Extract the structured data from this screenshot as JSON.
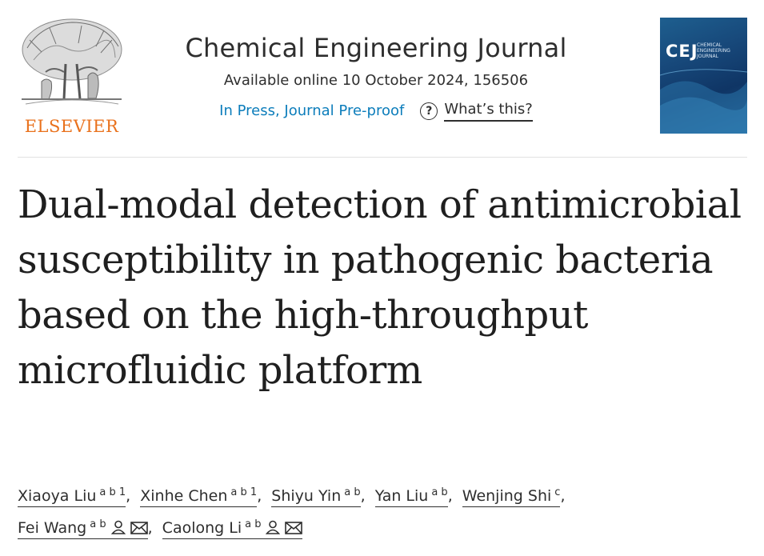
{
  "header": {
    "publisher": "ELSEVIER",
    "journal_title": "Chemical Engineering Journal",
    "availability": "Available online 10 October 2024, 156506",
    "status_link": "In Press, Journal Pre-proof",
    "whats_this": "What’s this?",
    "cover_mark": "CEJ",
    "cover_subtitle": "CHEMICAL ENGINEERING JOURNAL"
  },
  "article": {
    "title": "Dual-modal detection of antimicrobial susceptibility in pathogenic bacteria based on the high-throughput microfluidic platform"
  },
  "authors": [
    {
      "name": "Xiaoya Liu",
      "affil": "a b 1",
      "sep": ","
    },
    {
      "name": "Xinhe Chen",
      "affil": "a b 1",
      "sep": ","
    },
    {
      "name": "Shiyu Yin",
      "affil": "a b",
      "sep": ","
    },
    {
      "name": "Yan Liu",
      "affil": "a b",
      "sep": ","
    },
    {
      "name": "Wenjing Shi",
      "affil": "c",
      "sep": ","
    },
    {
      "name": "Fei Wang",
      "affil": "a b",
      "sep": ","
    },
    {
      "name": "Caolong Li",
      "affil": "a b",
      "sep": ""
    }
  ],
  "colors": {
    "brand_orange": "#e9711c",
    "link_blue": "#0c7dbb",
    "text": "#2e2e2e",
    "cover_blue": "#17487a"
  },
  "icons": {
    "help": "question-circle-icon",
    "person": "person-icon",
    "mail": "mail-icon"
  }
}
